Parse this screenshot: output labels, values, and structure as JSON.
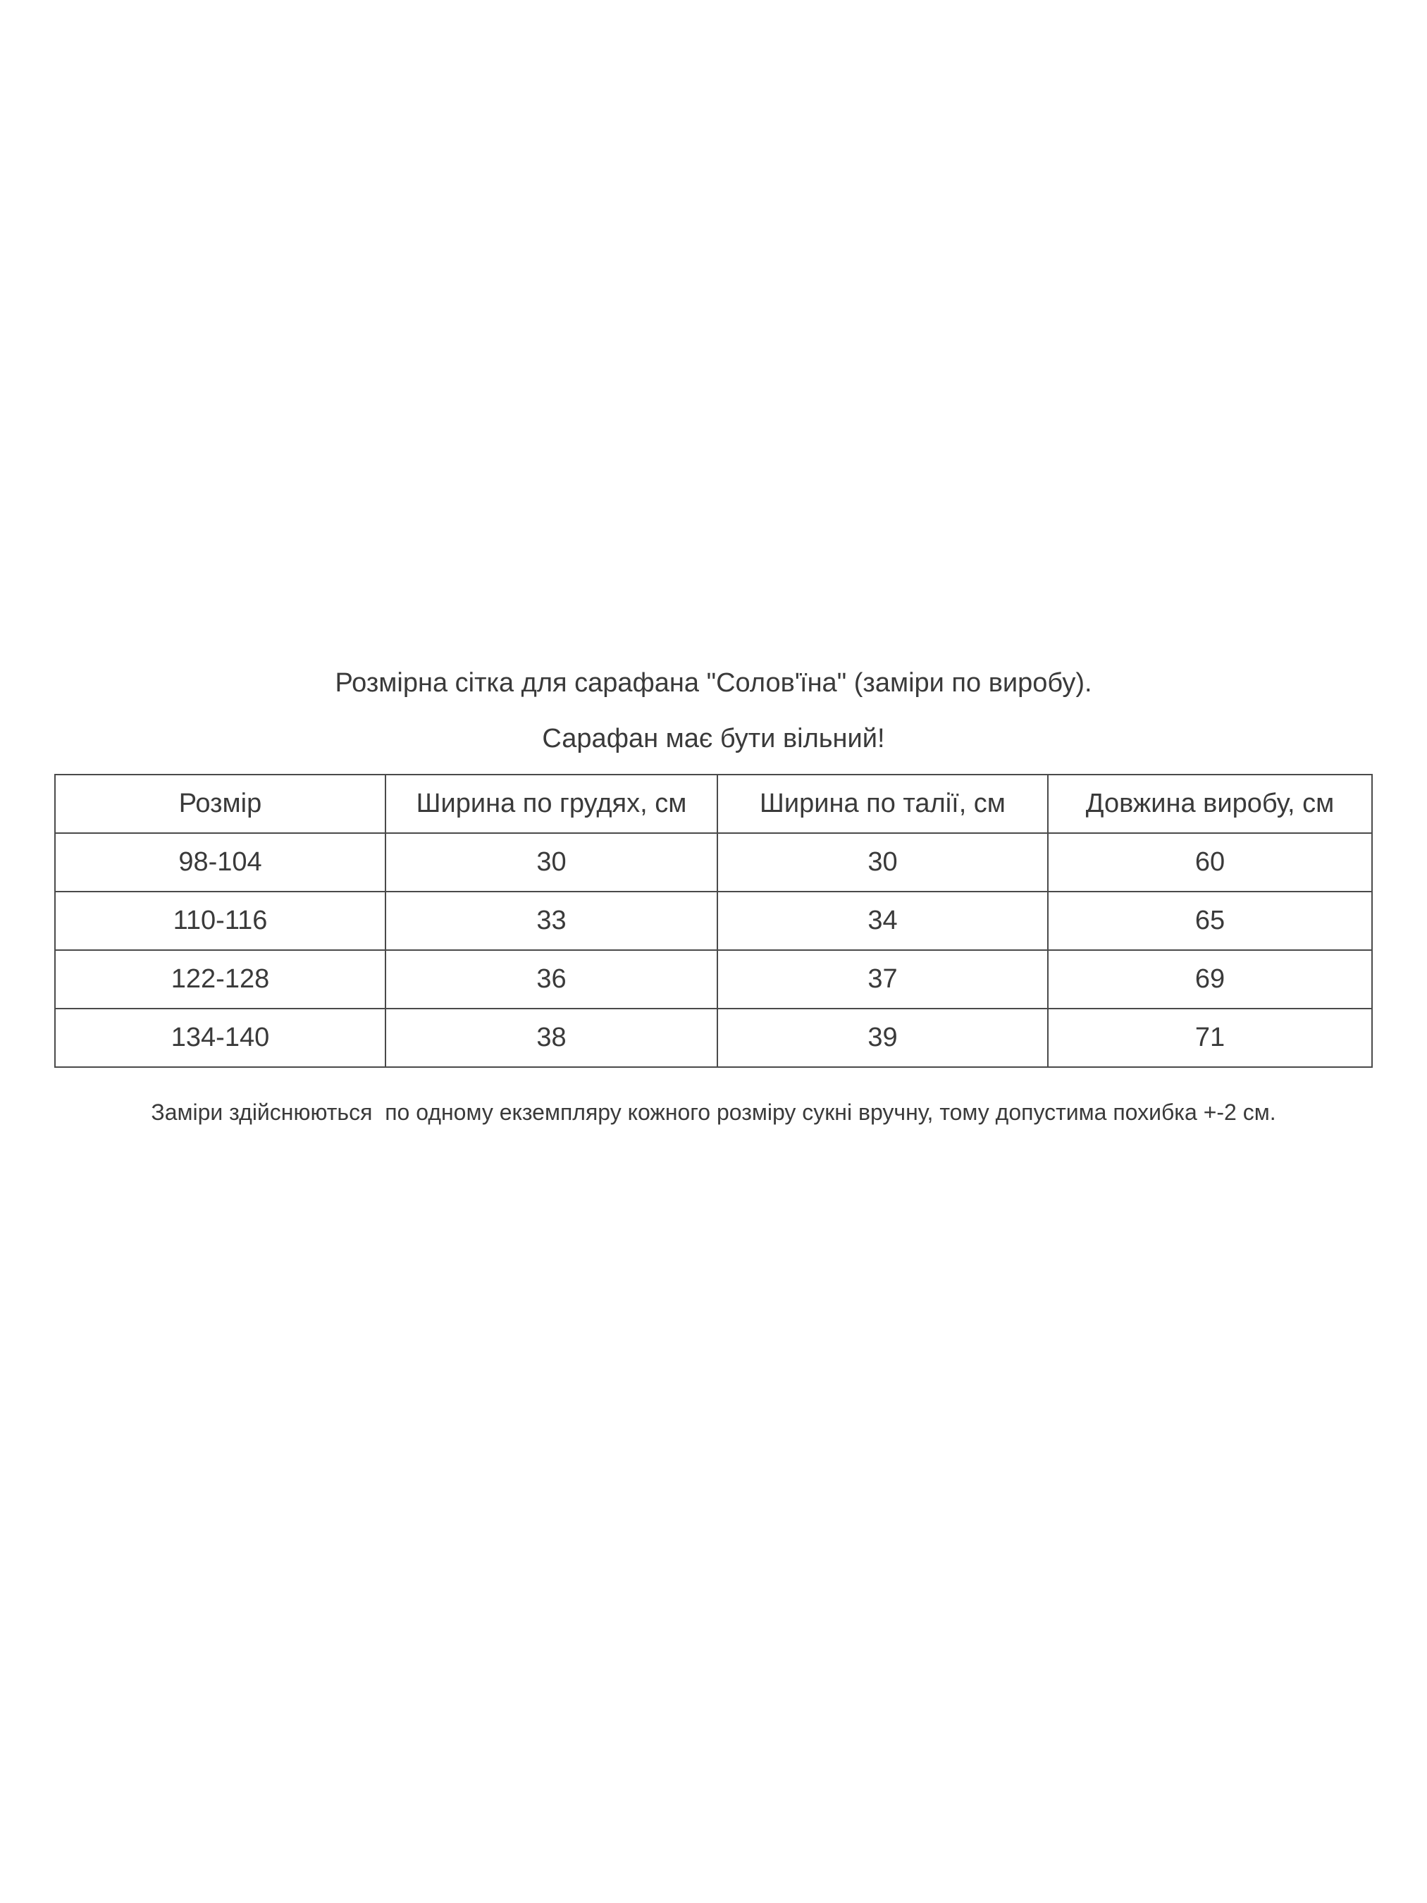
{
  "title": "Розмірна сітка для сарафана \"Солов'їна\" (заміри по виробу).",
  "subtitle": "Сарафан має бути вільний!",
  "table": {
    "headers": [
      "Розмір",
      "Ширина по грудях, см",
      "Ширина по талії, см",
      "Довжина виробу, см"
    ],
    "rows": [
      [
        "98-104",
        "30",
        "30",
        "60"
      ],
      [
        "110-116",
        "33",
        "34",
        "65"
      ],
      [
        "122-128",
        "36",
        "37",
        "69"
      ],
      [
        "134-140",
        "38",
        "39",
        "71"
      ]
    ]
  },
  "note": "Заміри здійснюються  по одному екземпляру кожного розміру сукні вручну, тому допустима похибка +-2 см."
}
